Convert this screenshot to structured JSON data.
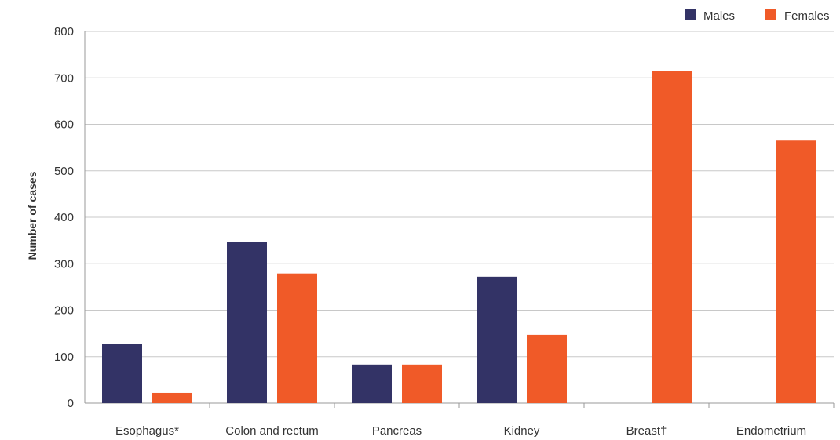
{
  "chart_data": {
    "type": "bar",
    "categories": [
      "Esophagus*",
      "Colon and rectum",
      "Pancreas",
      "Kidney",
      "Breast†",
      "Endometrium"
    ],
    "series": [
      {
        "name": "Males",
        "color": "#333366",
        "values": [
          128,
          346,
          83,
          272,
          null,
          null
        ]
      },
      {
        "name": "Females",
        "color": "#f05a28",
        "values": [
          22,
          279,
          83,
          147,
          714,
          565
        ]
      }
    ],
    "title": "",
    "xlabel": "",
    "ylabel": "Number of cases",
    "ylim": [
      0,
      800
    ],
    "yticks": [
      0,
      100,
      200,
      300,
      400,
      500,
      600,
      700,
      800
    ],
    "grid": true,
    "legend": "top-right"
  }
}
